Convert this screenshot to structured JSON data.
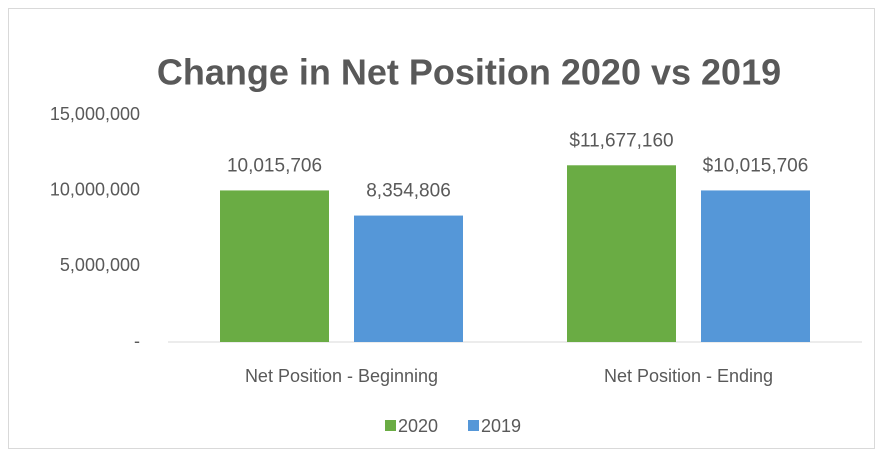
{
  "chart_data": {
    "type": "bar",
    "title": "Change in Net Position 2020 vs 2019",
    "categories": [
      "Net Position - Beginning",
      "Net Position - Ending"
    ],
    "series": [
      {
        "name": "2020",
        "color": "#6aac44",
        "values": [
          10015706,
          11677160
        ],
        "value_labels": [
          "10,015,706",
          "$11,677,160"
        ]
      },
      {
        "name": "2019",
        "color": "#5597d8",
        "values": [
          8354806,
          10015706
        ],
        "value_labels": [
          "8,354,806",
          "$10,015,706"
        ]
      }
    ],
    "ylim": [
      0,
      15000000
    ],
    "yticks": [
      {
        "value": 0,
        "label": "-"
      },
      {
        "value": 5000000,
        "label": "5,000,000"
      },
      {
        "value": 10000000,
        "label": "10,000,000"
      },
      {
        "value": 15000000,
        "label": "15,000,000"
      }
    ],
    "grid": false,
    "legend": "bottom"
  }
}
